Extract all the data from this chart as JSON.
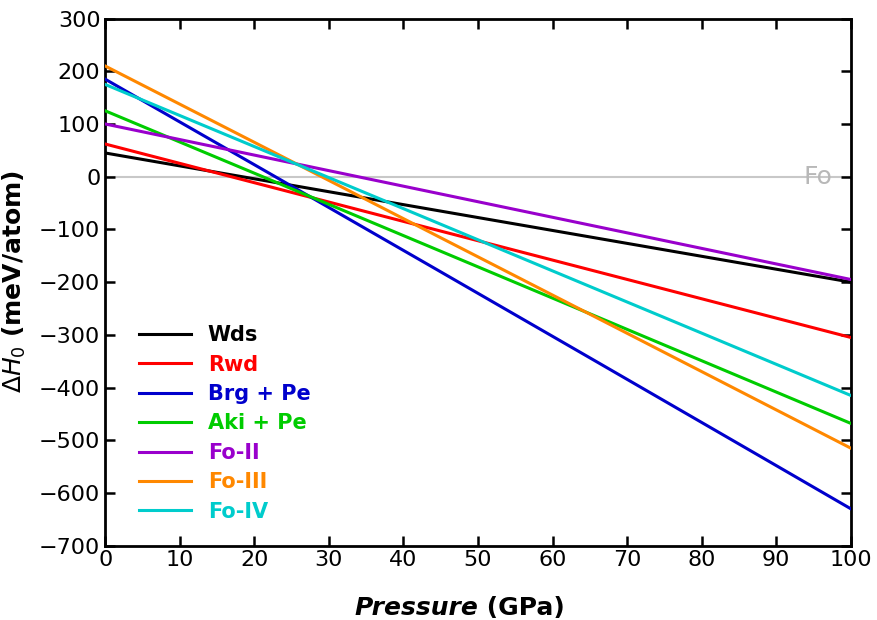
{
  "xlim": [
    0,
    100
  ],
  "ylim": [
    -700,
    300
  ],
  "xticks": [
    0,
    10,
    20,
    30,
    40,
    50,
    60,
    70,
    80,
    90,
    100
  ],
  "yticks": [
    -700,
    -600,
    -500,
    -400,
    -300,
    -200,
    -100,
    0,
    100,
    200,
    300
  ],
  "fo_label": "Fo",
  "fo_label_color": "#b8b8b8",
  "reference_line_color": "#c8c8c8",
  "series": [
    {
      "name": "Wds",
      "color": "#000000",
      "y0": 45,
      "y100": -200,
      "q": 0.0
    },
    {
      "name": "Rwd",
      "color": "#ff0000",
      "y0": 62,
      "y100": -305,
      "q": 0.0
    },
    {
      "name": "Brg + Pe",
      "color": "#0000cc",
      "y0": 185,
      "y100": -630,
      "q": -0.5
    },
    {
      "name": "Aki + Pe",
      "color": "#00cc00",
      "y0": 125,
      "y100": -468,
      "q": -0.2
    },
    {
      "name": "Fo-II",
      "color": "#9900cc",
      "y0": 100,
      "y100": -195,
      "q": 0.0
    },
    {
      "name": "Fo-III",
      "color": "#ff8800",
      "y0": 210,
      "y100": -515,
      "q": -0.2
    },
    {
      "name": "Fo-IV",
      "color": "#00cccc",
      "y0": 175,
      "y100": -415,
      "q": -0.15
    }
  ],
  "legend_label_colors": [
    "#000000",
    "#ff0000",
    "#0000cc",
    "#00cc00",
    "#9900cc",
    "#ff8800",
    "#00cccc"
  ],
  "background_color": "#ffffff",
  "tick_fontsize": 16,
  "label_fontsize": 18,
  "legend_fontsize": 15,
  "line_width": 2.2
}
